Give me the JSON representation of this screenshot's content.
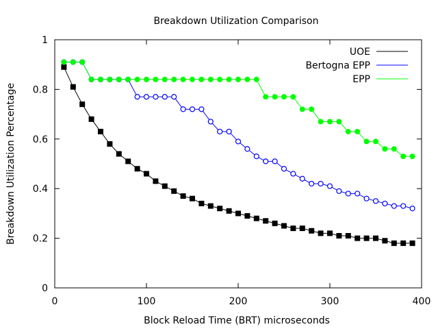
{
  "chart_data": {
    "type": "line",
    "title": "Breakdown Utilization Comparison",
    "xlabel": "Block Reload Time (BRT) microseconds",
    "ylabel": "Breakdown Utilization Percentage",
    "xlim": [
      0,
      400
    ],
    "ylim": [
      0,
      1
    ],
    "xticks": [
      "0",
      "100",
      "200",
      "300",
      "400"
    ],
    "yticks": [
      "0",
      "0.2",
      "0.4",
      "0.6",
      "0.8",
      "1"
    ],
    "grid": false,
    "legend_position": "top-right",
    "x": [
      10,
      20,
      30,
      40,
      50,
      60,
      70,
      80,
      90,
      100,
      110,
      120,
      130,
      140,
      150,
      160,
      170,
      180,
      190,
      200,
      210,
      220,
      230,
      240,
      250,
      260,
      270,
      280,
      290,
      300,
      310,
      320,
      330,
      340,
      350,
      360,
      370,
      380,
      390
    ],
    "series": [
      {
        "name": "UOE",
        "color": "#000000",
        "marker": "filled-square",
        "values": [
          0.89,
          0.81,
          0.74,
          0.68,
          0.63,
          0.58,
          0.54,
          0.51,
          0.48,
          0.46,
          0.43,
          0.41,
          0.39,
          0.37,
          0.36,
          0.34,
          0.33,
          0.32,
          0.31,
          0.3,
          0.29,
          0.28,
          0.27,
          0.26,
          0.25,
          0.24,
          0.24,
          0.23,
          0.22,
          0.22,
          0.21,
          0.21,
          0.2,
          0.2,
          0.2,
          0.19,
          0.18,
          0.18,
          0.18
        ]
      },
      {
        "name": "Bertogna EPP",
        "color": "#0000ff",
        "marker": "open-circle",
        "values": [
          0.91,
          0.91,
          0.91,
          0.84,
          0.84,
          0.84,
          0.84,
          0.84,
          0.77,
          0.77,
          0.77,
          0.77,
          0.77,
          0.72,
          0.72,
          0.72,
          0.67,
          0.63,
          0.63,
          0.59,
          0.56,
          0.53,
          0.51,
          0.51,
          0.48,
          0.46,
          0.44,
          0.42,
          0.42,
          0.41,
          0.39,
          0.38,
          0.38,
          0.36,
          0.35,
          0.34,
          0.33,
          0.33,
          0.32
        ]
      },
      {
        "name": "EPP",
        "color": "#00ff00",
        "marker": "filled-circle",
        "values": [
          0.91,
          0.91,
          0.91,
          0.84,
          0.84,
          0.84,
          0.84,
          0.84,
          0.84,
          0.84,
          0.84,
          0.84,
          0.84,
          0.84,
          0.84,
          0.84,
          0.84,
          0.84,
          0.84,
          0.84,
          0.84,
          0.84,
          0.77,
          0.77,
          0.77,
          0.77,
          0.72,
          0.72,
          0.67,
          0.67,
          0.67,
          0.63,
          0.63,
          0.59,
          0.59,
          0.56,
          0.56,
          0.53,
          0.53
        ]
      }
    ]
  }
}
